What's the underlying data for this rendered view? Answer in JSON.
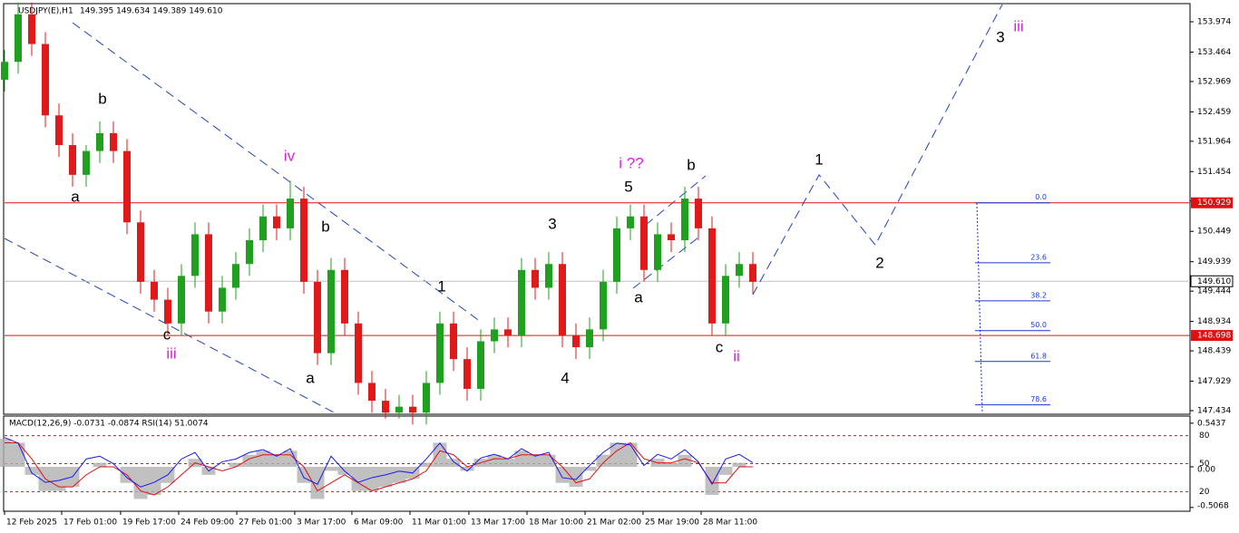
{
  "chart_data": [
    {
      "type": "candlestick",
      "title": "USDJPY(E),H1",
      "header_values": "149.395 149.634 149.389 149.610",
      "up_color": "#1fa01f",
      "down_color": "#e01a1a",
      "open": [
        153.0,
        153.3,
        154.1,
        153.6,
        152.4,
        151.9,
        151.4,
        151.8,
        152.1,
        151.8,
        150.6,
        149.6,
        149.3,
        148.9,
        149.7,
        150.4,
        149.1,
        149.5,
        149.9,
        150.3,
        150.7,
        150.5,
        151.0,
        149.6,
        148.4,
        149.8,
        148.9,
        147.9,
        147.6,
        147.4,
        147.5,
        147.4,
        147.9,
        148.9,
        148.3,
        147.8,
        148.6,
        148.8,
        148.7,
        149.8,
        149.5,
        149.9,
        148.7,
        148.5,
        148.8,
        149.6,
        150.5,
        150.7,
        149.8,
        150.4,
        150.3,
        151.0,
        150.5,
        148.9,
        149.7,
        149.9
      ],
      "high": [
        153.5,
        154.3,
        154.3,
        153.8,
        152.6,
        152.1,
        151.9,
        152.3,
        152.3,
        152.0,
        150.8,
        149.8,
        149.5,
        149.9,
        150.6,
        150.6,
        149.7,
        150.1,
        150.5,
        150.9,
        150.9,
        151.3,
        151.2,
        149.8,
        150.0,
        150.0,
        149.1,
        148.1,
        147.8,
        147.7,
        147.7,
        148.1,
        149.1,
        149.1,
        148.5,
        148.8,
        149.0,
        149.0,
        150.0,
        150.0,
        150.1,
        150.1,
        148.9,
        149.0,
        149.8,
        150.7,
        150.9,
        150.9,
        150.6,
        150.6,
        151.2,
        151.2,
        150.7,
        149.9,
        150.1,
        150.1
      ],
      "low": [
        152.8,
        153.1,
        153.4,
        152.2,
        151.7,
        151.2,
        151.2,
        151.6,
        151.6,
        150.4,
        149.4,
        149.1,
        148.7,
        148.7,
        149.5,
        148.9,
        148.9,
        149.3,
        149.7,
        150.1,
        150.3,
        150.3,
        149.4,
        148.2,
        148.2,
        148.7,
        147.7,
        147.4,
        147.3,
        147.3,
        147.2,
        147.2,
        147.7,
        148.1,
        147.6,
        147.6,
        148.4,
        148.5,
        148.5,
        149.3,
        149.3,
        148.5,
        148.3,
        148.3,
        148.6,
        149.4,
        150.3,
        149.6,
        149.6,
        150.1,
        150.1,
        150.3,
        148.7,
        148.7,
        149.5,
        149.4
      ],
      "close": [
        153.3,
        154.1,
        153.6,
        152.4,
        151.9,
        151.4,
        151.8,
        152.1,
        151.8,
        150.6,
        149.6,
        149.3,
        148.9,
        149.7,
        150.4,
        149.1,
        149.5,
        149.9,
        150.3,
        150.7,
        150.5,
        151.0,
        149.6,
        148.4,
        149.8,
        148.9,
        147.9,
        147.6,
        147.4,
        147.5,
        147.4,
        147.9,
        148.9,
        148.3,
        147.8,
        148.6,
        148.8,
        148.7,
        149.8,
        149.5,
        149.9,
        148.7,
        148.5,
        148.8,
        149.6,
        150.5,
        150.7,
        149.8,
        150.4,
        150.3,
        151.0,
        150.5,
        148.9,
        149.7,
        149.9,
        149.6
      ],
      "xlim": [
        0,
        87
      ],
      "ylim": [
        147.388,
        154.264
      ],
      "yticks": [
        153.974,
        153.464,
        152.969,
        152.459,
        151.964,
        151.454,
        150.959,
        150.449,
        149.939,
        149.444,
        148.934,
        148.439,
        147.929,
        147.434
      ],
      "xticks": [
        {
          "value": 0,
          "label": "12 Feb 2025"
        },
        {
          "value": 4.2,
          "label": "17 Feb 01:00"
        },
        {
          "value": 8.53,
          "label": "19 Feb 17:00"
        },
        {
          "value": 12.8,
          "label": "24 Feb 09:00"
        },
        {
          "value": 17.07,
          "label": "27 Feb 01:00"
        },
        {
          "value": 21.33,
          "label": "3 Mar 17:00"
        },
        {
          "value": 25.53,
          "label": "6 Mar 09:00"
        },
        {
          "value": 29.8,
          "label": "11 Mar 01:00"
        },
        {
          "value": 34.13,
          "label": "13 Mar 17:00"
        },
        {
          "value": 38.4,
          "label": "18 Mar 10:00"
        },
        {
          "value": 42.67,
          "label": "21 Mar 02:00"
        },
        {
          "value": 46.93,
          "label": "25 Mar 19:00"
        },
        {
          "value": 51.2,
          "label": "28 Mar 11:00"
        }
      ],
      "hlines": [
        150.929,
        148.698
      ],
      "hline_color": "#e01010",
      "current_price": {
        "value": 149.61,
        "label": "149.610"
      },
      "projection": {
        "x": [
          55,
          59.87,
          64,
          73.33
        ],
        "y": [
          149.385,
          151.4,
          150.22,
          154.264
        ],
        "color": "#2244bb"
      },
      "fib": {
        "color": "#1a3ad0",
        "levels": [
          {
            "label": "0.0",
            "price": 150.929
          },
          {
            "label": "23.6",
            "price": 149.92
          },
          {
            "label": "38.2",
            "price": 149.28
          },
          {
            "label": "50.0",
            "price": 148.78
          },
          {
            "label": "61.8",
            "price": 148.26
          },
          {
            "label": "78.6",
            "price": 147.53
          }
        ]
      },
      "annotations": [
        {
          "text": "b",
          "color": "#000"
        },
        {
          "text": "a",
          "color": "#000"
        },
        {
          "text": "c",
          "color": "#000"
        },
        {
          "text": "iii",
          "color": "#e020e0"
        },
        {
          "text": "iv",
          "color": "#e020e0"
        },
        {
          "text": "b",
          "color": "#000"
        },
        {
          "text": "a",
          "color": "#000"
        },
        {
          "text": "1",
          "color": "#000"
        },
        {
          "text": "3",
          "color": "#000"
        },
        {
          "text": "4",
          "color": "#000"
        },
        {
          "text": "5",
          "color": "#000"
        },
        {
          "text": "i ??",
          "color": "#e020e0"
        },
        {
          "text": "b",
          "color": "#000"
        },
        {
          "text": "a",
          "color": "#000"
        },
        {
          "text": "c",
          "color": "#000"
        },
        {
          "text": "ii",
          "color": "#e020e0"
        },
        {
          "text": "1",
          "color": "#000"
        },
        {
          "text": "2",
          "color": "#000"
        },
        {
          "text": "3",
          "color": "#000"
        },
        {
          "text": "iii",
          "color": "#e020e0"
        }
      ]
    },
    {
      "type": "indicator",
      "title": "MACD(12,26,9) -0.0731 -0.0874 RSI(14) 51.0074",
      "xlim": [
        0,
        87
      ],
      "ylim": [
        -0.5424,
        0.6215
      ],
      "yticks": [
        0.5437,
        {
          "value": 0,
          "label": "0.00"
        },
        -0.5068
      ],
      "y2lim": [
        0,
        100
      ],
      "y2ticks": [
        80,
        50,
        20
      ],
      "series": [
        {
          "name": "MACD",
          "color": "#b0b0b0",
          "values": [
            0.35,
            0.3,
            -0.1,
            -0.3,
            -0.3,
            -0.25,
            0.0,
            0.05,
            0.0,
            -0.2,
            -0.4,
            -0.35,
            -0.2,
            0.0,
            0.1,
            -0.1,
            0.0,
            0.05,
            0.15,
            0.2,
            0.15,
            0.2,
            -0.2,
            -0.4,
            -0.05,
            -0.1,
            -0.3,
            -0.3,
            -0.25,
            -0.2,
            -0.15,
            0.05,
            0.3,
            0.1,
            -0.05,
            0.1,
            0.15,
            0.1,
            0.2,
            0.15,
            0.15,
            -0.2,
            -0.25,
            -0.05,
            0.15,
            0.3,
            0.3,
            0.0,
            0.1,
            0.05,
            0.15,
            0.0,
            -0.35,
            -0.1,
            0.05,
            0.0
          ]
        },
        {
          "name": "Signal",
          "color": "#e01010",
          "values": [
            0.3,
            0.3,
            0.1,
            -0.15,
            -0.25,
            -0.25,
            -0.1,
            0.0,
            0.0,
            -0.1,
            -0.3,
            -0.35,
            -0.25,
            -0.1,
            0.05,
            0.0,
            -0.05,
            0.0,
            0.1,
            0.15,
            0.15,
            0.15,
            0.0,
            -0.3,
            -0.2,
            -0.1,
            -0.2,
            -0.3,
            -0.25,
            -0.2,
            -0.15,
            -0.05,
            0.2,
            0.15,
            0.0,
            0.05,
            0.1,
            0.1,
            0.15,
            0.15,
            0.15,
            0.0,
            -0.2,
            -0.15,
            0.05,
            0.2,
            0.3,
            0.1,
            0.05,
            0.05,
            0.1,
            0.05,
            -0.2,
            -0.2,
            0.0,
            0.0
          ]
        },
        {
          "name": "RSI",
          "color": "#1a1aee",
          "axis": "y2",
          "values": [
            78,
            72,
            40,
            30,
            32,
            36,
            55,
            58,
            50,
            35,
            25,
            30,
            38,
            55,
            62,
            42,
            52,
            55,
            62,
            65,
            58,
            66,
            35,
            28,
            58,
            42,
            30,
            35,
            38,
            42,
            40,
            55,
            72,
            52,
            42,
            56,
            60,
            55,
            66,
            58,
            62,
            35,
            33,
            48,
            62,
            72,
            70,
            48,
            60,
            55,
            65,
            52,
            28,
            55,
            60,
            51
          ]
        }
      ]
    }
  ]
}
